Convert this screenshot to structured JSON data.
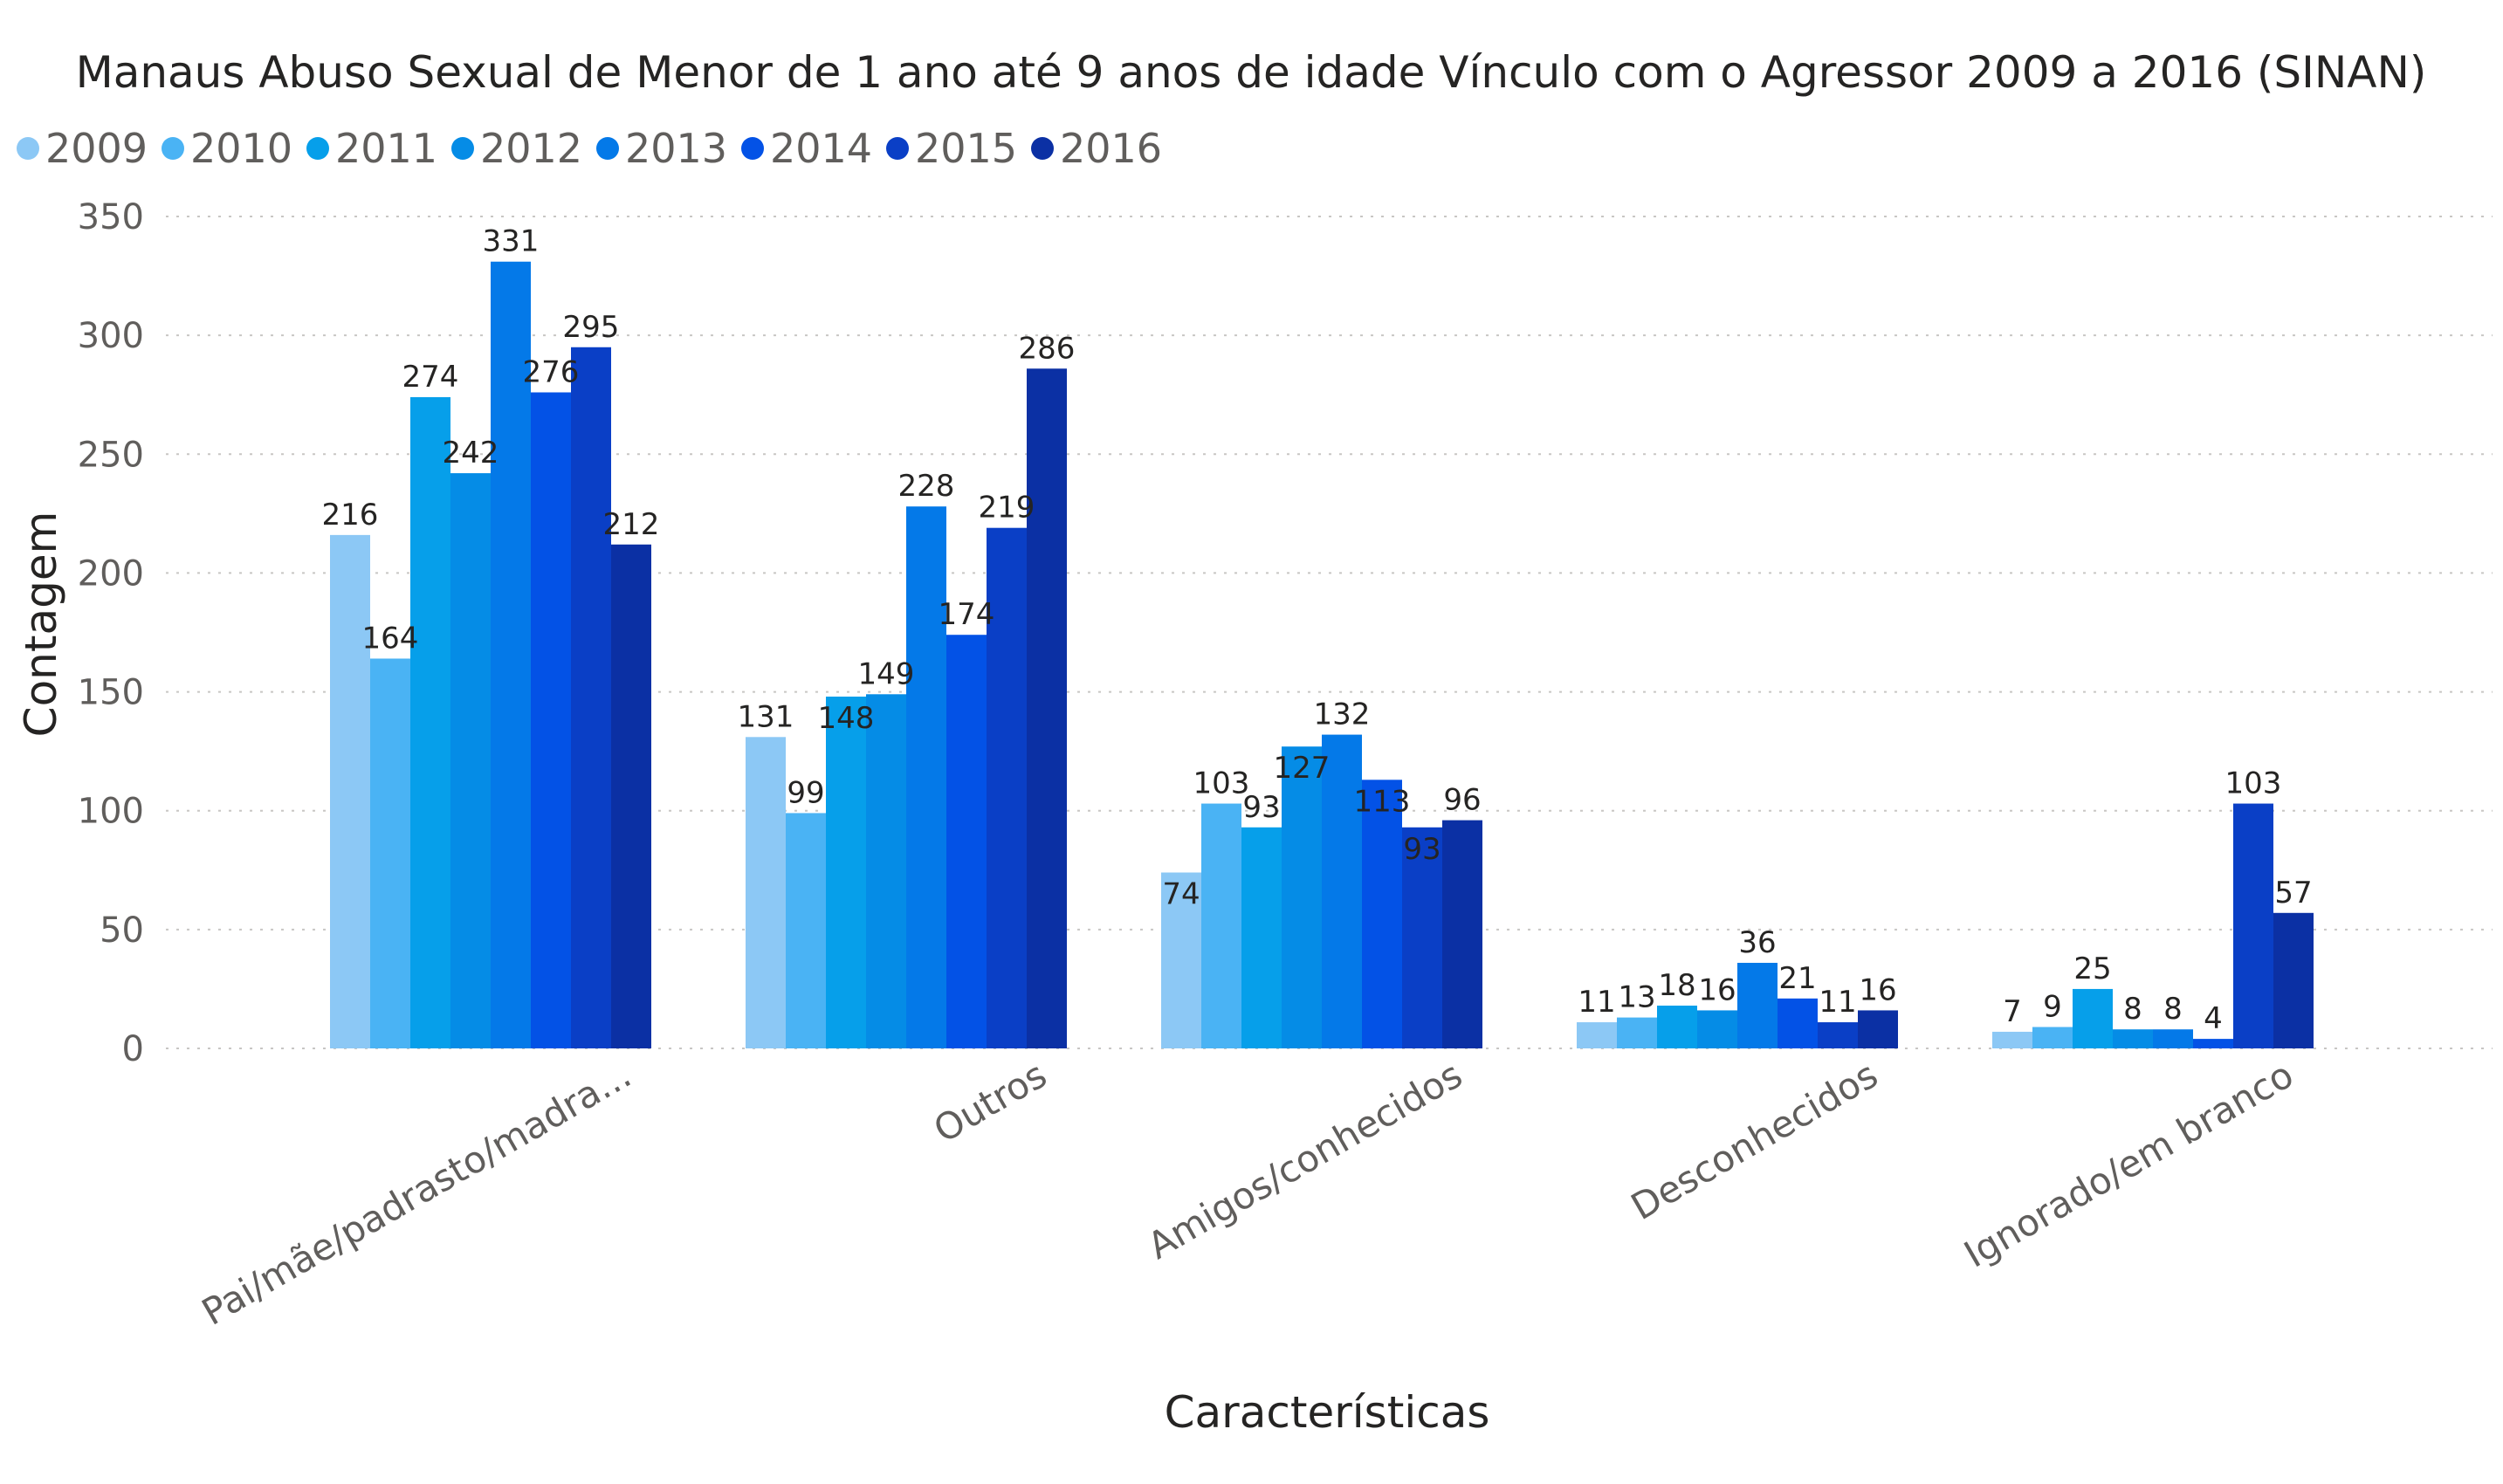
{
  "chart_data": {
    "type": "bar",
    "title": "Manaus Abuso Sexual de Menor de 1 ano até 9 anos de idade Vínculo com o Agressor 2009 a 2016 (SINAN)",
    "xlabel": "Características",
    "ylabel": "Contagem",
    "ylim": [
      0,
      350
    ],
    "yticks": [
      0,
      50,
      100,
      150,
      200,
      250,
      300,
      350
    ],
    "grid": true,
    "legend_position": "top-left",
    "categories": [
      "Pai/mãe/padrasto/madra...",
      "Outros",
      "Amigos/conhecidos",
      "Desconhecidos",
      "Ignorado/em branco"
    ],
    "series": [
      {
        "name": "2009",
        "color": "#8cc8f5",
        "values": [
          216,
          131,
          74,
          11,
          7
        ]
      },
      {
        "name": "2010",
        "color": "#4ab3f4",
        "values": [
          164,
          99,
          103,
          13,
          9
        ]
      },
      {
        "name": "2011",
        "color": "#069fea",
        "values": [
          274,
          148,
          93,
          18,
          25
        ]
      },
      {
        "name": "2012",
        "color": "#058ce6",
        "values": [
          242,
          149,
          127,
          16,
          8
        ]
      },
      {
        "name": "2013",
        "color": "#0479e8",
        "values": [
          331,
          228,
          132,
          36,
          8
        ]
      },
      {
        "name": "2014",
        "color": "#0352e6",
        "values": [
          276,
          174,
          113,
          21,
          4
        ]
      },
      {
        "name": "2015",
        "color": "#0a3fc6",
        "values": [
          295,
          219,
          93,
          11,
          103
        ]
      },
      {
        "name": "2016",
        "color": "#0b30a4",
        "values": [
          212,
          286,
          96,
          16,
          57
        ]
      }
    ]
  }
}
